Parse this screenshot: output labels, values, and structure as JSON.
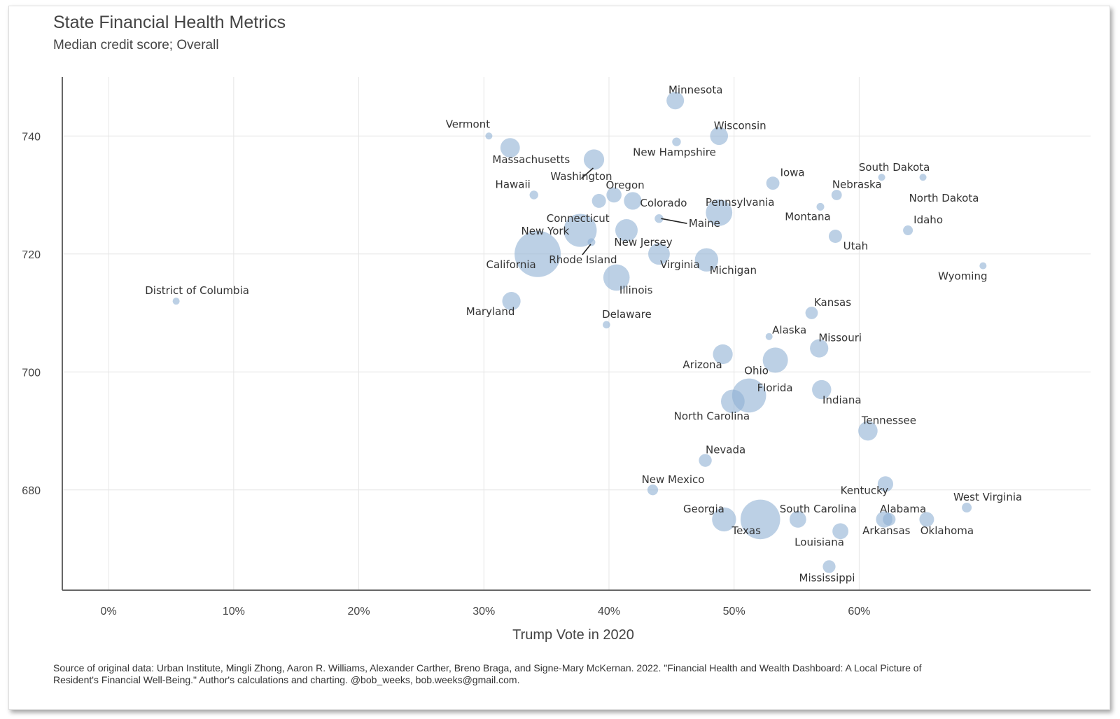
{
  "chart_data": {
    "type": "scatter",
    "title": "State Financial Health Metrics",
    "subtitle": "Median credit score; Overall",
    "xlabel": "Trump Vote in 2020",
    "ylabel": "",
    "xlim": [
      -3.7,
      78.5
    ],
    "ylim": [
      663,
      750
    ],
    "xticks": [
      0,
      10,
      20,
      30,
      40,
      50,
      60
    ],
    "xtick_labels": [
      "0%",
      "10%",
      "20%",
      "30%",
      "40%",
      "50%",
      "60%"
    ],
    "yticks": [
      680,
      700,
      720,
      740
    ],
    "ytick_labels": [
      "680",
      "700",
      "720",
      "740"
    ],
    "grid": true,
    "size_variable": "population (relative bubble size)",
    "caption": "Source of original data: Urban Institute, Mingli Zhong, Aaron R. Williams, Alexander Carther, Breno Braga, and Signe-Mary McKernan. 2022. \"Financial Health and Wealth Dashboard: A Local Picture of Resident's Financial Well-Being.\" Author's calculations and charting. @bob_weeks, bob.weeks@gmail.com.",
    "points": [
      {
        "name": "District of Columbia",
        "x": 5.4,
        "y": 712,
        "size": 0.7
      },
      {
        "name": "Vermont",
        "x": 30.4,
        "y": 740,
        "size": 0.6
      },
      {
        "name": "Massachusetts",
        "x": 32.1,
        "y": 738,
        "size": 7.0
      },
      {
        "name": "Hawaii",
        "x": 34.0,
        "y": 730,
        "size": 1.4
      },
      {
        "name": "Maryland",
        "x": 32.2,
        "y": 712,
        "size": 6.2
      },
      {
        "name": "California",
        "x": 34.3,
        "y": 720,
        "size": 39.5
      },
      {
        "name": "New York",
        "x": 37.7,
        "y": 724,
        "size": 20.2
      },
      {
        "name": "Connecticut",
        "x": 39.2,
        "y": 729,
        "size": 3.6
      },
      {
        "name": "Rhode Island",
        "x": 38.6,
        "y": 722,
        "size": 1.1
      },
      {
        "name": "Washington",
        "x": 38.8,
        "y": 736,
        "size": 7.7
      },
      {
        "name": "Oregon",
        "x": 40.4,
        "y": 730,
        "size": 4.2
      },
      {
        "name": "Colorado",
        "x": 41.9,
        "y": 729,
        "size": 5.8
      },
      {
        "name": "New Jersey",
        "x": 41.4,
        "y": 724,
        "size": 9.3
      },
      {
        "name": "Illinois",
        "x": 40.6,
        "y": 716,
        "size": 12.8
      },
      {
        "name": "Delaware",
        "x": 39.8,
        "y": 708,
        "size": 1.0
      },
      {
        "name": "Maine",
        "x": 44.0,
        "y": 726,
        "size": 1.4
      },
      {
        "name": "New Hampshire",
        "x": 45.4,
        "y": 739,
        "size": 1.4
      },
      {
        "name": "Minnesota",
        "x": 45.3,
        "y": 746,
        "size": 5.7
      },
      {
        "name": "Virginia",
        "x": 44.0,
        "y": 720,
        "size": 8.6
      },
      {
        "name": "Michigan",
        "x": 47.8,
        "y": 719,
        "size": 10.1
      },
      {
        "name": "Wisconsin",
        "x": 48.8,
        "y": 740,
        "size": 5.9
      },
      {
        "name": "Pennsylvania",
        "x": 48.8,
        "y": 727,
        "size": 13.0
      },
      {
        "name": "Arizona",
        "x": 49.1,
        "y": 703,
        "size": 7.2
      },
      {
        "name": "North Carolina",
        "x": 49.9,
        "y": 695,
        "size": 10.4
      },
      {
        "name": "Florida",
        "x": 51.2,
        "y": 696,
        "size": 21.5
      },
      {
        "name": "Georgia",
        "x": 49.2,
        "y": 675,
        "size": 10.7
      },
      {
        "name": "Nevada",
        "x": 47.7,
        "y": 685,
        "size": 3.1
      },
      {
        "name": "New Mexico",
        "x": 43.5,
        "y": 680,
        "size": 2.1
      },
      {
        "name": "Texas",
        "x": 52.1,
        "y": 675,
        "size": 29.0
      },
      {
        "name": "Ohio",
        "x": 53.3,
        "y": 702,
        "size": 11.8
      },
      {
        "name": "Alaska",
        "x": 52.8,
        "y": 706,
        "size": 0.7
      },
      {
        "name": "Iowa",
        "x": 53.1,
        "y": 732,
        "size": 3.2
      },
      {
        "name": "South Carolina",
        "x": 55.1,
        "y": 675,
        "size": 5.1
      },
      {
        "name": "Kansas",
        "x": 56.2,
        "y": 710,
        "size": 2.9
      },
      {
        "name": "Missouri",
        "x": 56.8,
        "y": 704,
        "size": 6.2
      },
      {
        "name": "Montana",
        "x": 56.9,
        "y": 728,
        "size": 1.1
      },
      {
        "name": "Indiana",
        "x": 57.0,
        "y": 697,
        "size": 6.8
      },
      {
        "name": "Mississippi",
        "x": 57.6,
        "y": 667,
        "size": 3.0
      },
      {
        "name": "Nebraska",
        "x": 58.2,
        "y": 730,
        "size": 2.0
      },
      {
        "name": "Utah",
        "x": 58.1,
        "y": 723,
        "size": 3.3
      },
      {
        "name": "Louisiana",
        "x": 58.5,
        "y": 673,
        "size": 4.7
      },
      {
        "name": "Tennessee",
        "x": 60.7,
        "y": 690,
        "size": 6.9
      },
      {
        "name": "South Dakota",
        "x": 61.8,
        "y": 733,
        "size": 0.9
      },
      {
        "name": "Kentucky",
        "x": 62.1,
        "y": 681,
        "size": 4.5
      },
      {
        "name": "Alabama",
        "x": 62.0,
        "y": 675,
        "size": 5.0
      },
      {
        "name": "Arkansas",
        "x": 62.4,
        "y": 675,
        "size": 3.0
      },
      {
        "name": "Idaho",
        "x": 63.9,
        "y": 724,
        "size": 1.8
      },
      {
        "name": "North Dakota",
        "x": 65.1,
        "y": 733,
        "size": 0.8
      },
      {
        "name": "Oklahoma",
        "x": 65.4,
        "y": 675,
        "size": 4.0
      },
      {
        "name": "West Virginia",
        "x": 68.6,
        "y": 677,
        "size": 1.8
      },
      {
        "name": "Wyoming",
        "x": 69.9,
        "y": 718,
        "size": 0.6
      }
    ]
  }
}
